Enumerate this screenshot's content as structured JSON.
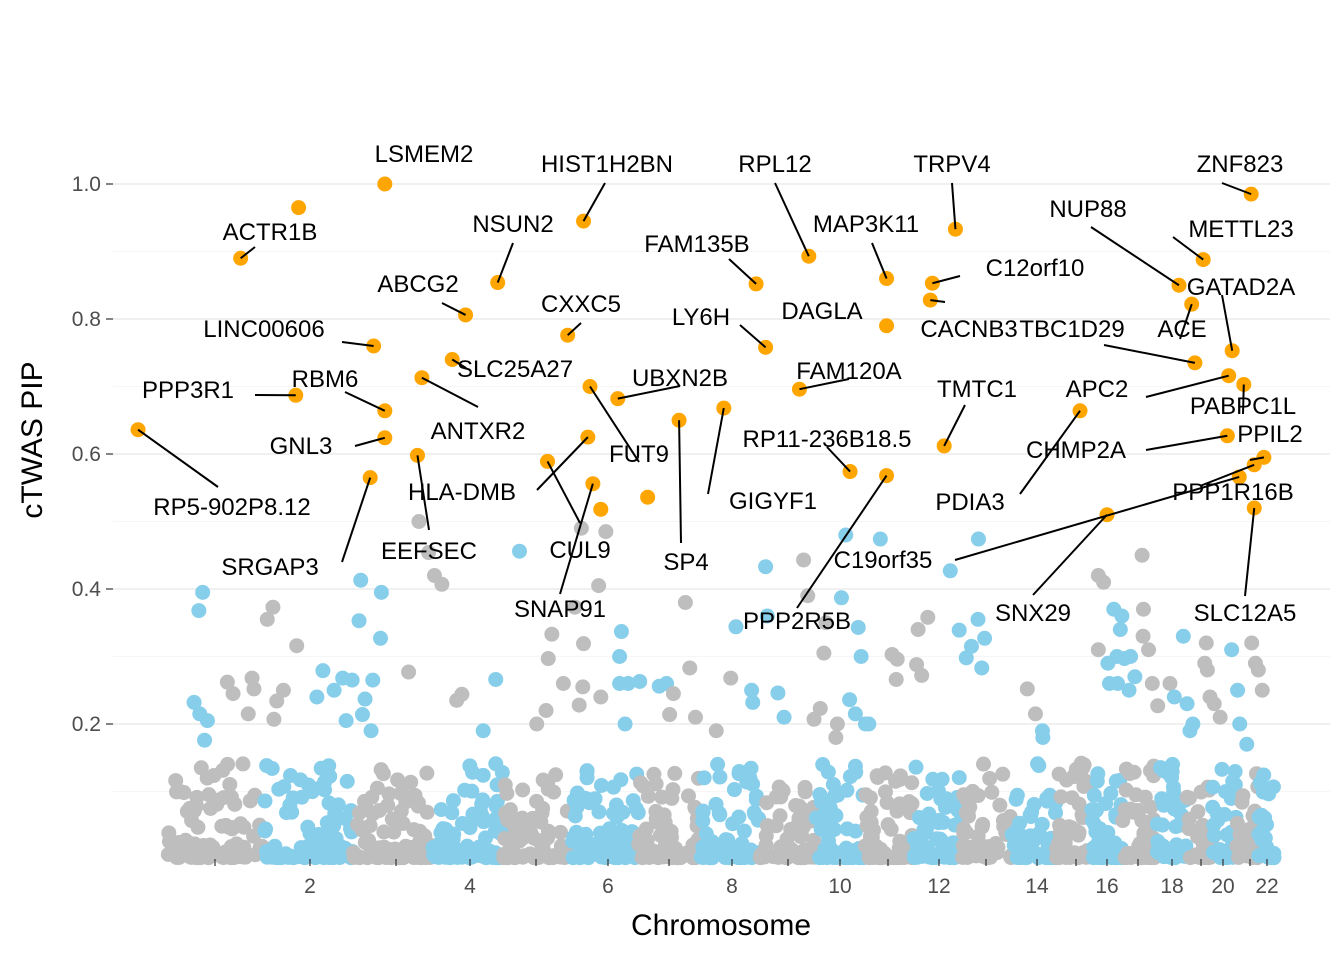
{
  "chart_data": {
    "type": "scatter",
    "title": "",
    "xlabel": "Chromosome",
    "ylabel": "cTWAS PIP",
    "xlim": [
      0.15,
      22.45
    ],
    "ylim": [
      0,
      1.08
    ],
    "x_ticks": [
      1,
      2,
      3,
      4,
      5,
      6,
      7,
      8,
      9,
      10,
      11,
      12,
      13,
      14,
      15,
      16,
      17,
      18,
      19,
      20,
      21,
      22
    ],
    "x_tick_labels": [
      "",
      "2",
      "",
      "4",
      "",
      "6",
      "",
      "8",
      "",
      "10",
      "",
      "12",
      "",
      "14",
      "",
      "16",
      "",
      "18",
      "",
      "20",
      "",
      "22"
    ],
    "y_ticks": [
      0.2,
      0.4,
      0.6,
      0.8,
      1.0
    ],
    "y_tick_labels": [
      "0.2",
      "0.4",
      "0.6",
      "0.8",
      "1.0"
    ],
    "colors": {
      "odd_chromosome": "#bebebe",
      "even_chromosome": "#87ceeb",
      "highlighted": "#ffa500",
      "grid": "#ebebeb",
      "axis_text": "#4d4d4d"
    },
    "series": [
      {
        "name": "background",
        "values": [
          {
            "x": 0.87,
            "y": 0.395
          },
          {
            "x": 0.83,
            "y": 0.368
          },
          {
            "x": 1.55,
            "y": 0.355
          },
          {
            "x": 1.61,
            "y": 0.373
          },
          {
            "x": 0.78,
            "y": 0.232
          },
          {
            "x": 0.84,
            "y": 0.215
          },
          {
            "x": 0.92,
            "y": 0.205
          },
          {
            "x": 0.89,
            "y": 0.176
          },
          {
            "x": 1.13,
            "y": 0.262
          },
          {
            "x": 1.19,
            "y": 0.245
          },
          {
            "x": 1.39,
            "y": 0.268
          },
          {
            "x": 1.41,
            "y": 0.252
          },
          {
            "x": 1.72,
            "y": 0.25
          },
          {
            "x": 1.65,
            "y": 0.234
          },
          {
            "x": 1.62,
            "y": 0.207
          },
          {
            "x": 1.35,
            "y": 0.215
          },
          {
            "x": 1.86,
            "y": 0.316
          },
          {
            "x": 2.15,
            "y": 0.279
          },
          {
            "x": 2.38,
            "y": 0.268
          },
          {
            "x": 2.49,
            "y": 0.265
          },
          {
            "x": 2.08,
            "y": 0.24
          },
          {
            "x": 2.28,
            "y": 0.25
          },
          {
            "x": 2.42,
            "y": 0.205
          },
          {
            "x": 2.61,
            "y": 0.214
          },
          {
            "x": 2.59,
            "y": 0.413
          },
          {
            "x": 2.57,
            "y": 0.353
          },
          {
            "x": 2.64,
            "y": 0.237
          },
          {
            "x": 2.71,
            "y": 0.19
          },
          {
            "x": 2.83,
            "y": 0.395
          },
          {
            "x": 2.82,
            "y": 0.327
          },
          {
            "x": 3.17,
            "y": 0.277
          },
          {
            "x": 2.73,
            "y": 0.265
          },
          {
            "x": 3.31,
            "y": 0.5
          },
          {
            "x": 3.44,
            "y": 0.454
          },
          {
            "x": 3.52,
            "y": 0.42
          },
          {
            "x": 3.62,
            "y": 0.407
          },
          {
            "x": 3.89,
            "y": 0.244
          },
          {
            "x": 3.82,
            "y": 0.235
          },
          {
            "x": 4.39,
            "y": 0.266
          },
          {
            "x": 4.2,
            "y": 0.19
          },
          {
            "x": 4.75,
            "y": 0.456
          },
          {
            "x": 5.54,
            "y": 0.373
          },
          {
            "x": 5.22,
            "y": 0.333
          },
          {
            "x": 5.17,
            "y": 0.297
          },
          {
            "x": 5.01,
            "y": 0.2
          },
          {
            "x": 5.14,
            "y": 0.22
          },
          {
            "x": 5.38,
            "y": 0.26
          },
          {
            "x": 5.6,
            "y": 0.228
          },
          {
            "x": 5.63,
            "y": 0.49
          },
          {
            "x": 5.97,
            "y": 0.485
          },
          {
            "x": 5.87,
            "y": 0.405
          },
          {
            "x": 6.22,
            "y": 0.337
          },
          {
            "x": 5.66,
            "y": 0.319
          },
          {
            "x": 6.19,
            "y": 0.3
          },
          {
            "x": 6.19,
            "y": 0.26
          },
          {
            "x": 5.65,
            "y": 0.255
          },
          {
            "x": 6.33,
            "y": 0.26
          },
          {
            "x": 5.9,
            "y": 0.24
          },
          {
            "x": 6.28,
            "y": 0.2
          },
          {
            "x": 6.52,
            "y": 0.263
          },
          {
            "x": 6.84,
            "y": 0.256
          },
          {
            "x": 6.96,
            "y": 0.26
          },
          {
            "x": 7.07,
            "y": 0.245
          },
          {
            "x": 7.01,
            "y": 0.214
          },
          {
            "x": 7.26,
            "y": 0.38
          },
          {
            "x": 7.33,
            "y": 0.283
          },
          {
            "x": 7.42,
            "y": 0.21
          },
          {
            "x": 7.75,
            "y": 0.19
          },
          {
            "x": 8.07,
            "y": 0.344
          },
          {
            "x": 7.98,
            "y": 0.268
          },
          {
            "x": 8.35,
            "y": 0.25
          },
          {
            "x": 8.37,
            "y": 0.232
          },
          {
            "x": 8.6,
            "y": 0.433
          },
          {
            "x": 8.63,
            "y": 0.36
          },
          {
            "x": 8.82,
            "y": 0.246
          },
          {
            "x": 8.93,
            "y": 0.21
          },
          {
            "x": 9.3,
            "y": 0.443
          },
          {
            "x": 9.38,
            "y": 0.39
          },
          {
            "x": 9.73,
            "y": 0.35
          },
          {
            "x": 9.69,
            "y": 0.305
          },
          {
            "x": 9.5,
            "y": 0.207
          },
          {
            "x": 9.62,
            "y": 0.223
          },
          {
            "x": 9.95,
            "y": 0.2
          },
          {
            "x": 9.92,
            "y": 0.18
          },
          {
            "x": 10.12,
            "y": 0.48
          },
          {
            "x": 10.03,
            "y": 0.387
          },
          {
            "x": 10.38,
            "y": 0.343
          },
          {
            "x": 10.44,
            "y": 0.3
          },
          {
            "x": 10.2,
            "y": 0.236
          },
          {
            "x": 10.32,
            "y": 0.215
          },
          {
            "x": 10.53,
            "y": 0.2
          },
          {
            "x": 10.6,
            "y": 0.2
          },
          {
            "x": 10.84,
            "y": 0.474
          },
          {
            "x": 11.08,
            "y": 0.303
          },
          {
            "x": 11.16,
            "y": 0.266
          },
          {
            "x": 11.18,
            "y": 0.296
          },
          {
            "x": 11.59,
            "y": 0.34
          },
          {
            "x": 11.56,
            "y": 0.288
          },
          {
            "x": 11.78,
            "y": 0.358
          },
          {
            "x": 11.66,
            "y": 0.272
          },
          {
            "x": 12.24,
            "y": 0.427
          },
          {
            "x": 12.43,
            "y": 0.339
          },
          {
            "x": 12.69,
            "y": 0.315
          },
          {
            "x": 12.58,
            "y": 0.298
          },
          {
            "x": 12.84,
            "y": 0.474
          },
          {
            "x": 12.83,
            "y": 0.355
          },
          {
            "x": 12.97,
            "y": 0.327
          },
          {
            "x": 12.91,
            "y": 0.283
          },
          {
            "x": 13.81,
            "y": 0.252
          },
          {
            "x": 13.97,
            "y": 0.215
          },
          {
            "x": 14.14,
            "y": 0.19
          },
          {
            "x": 14.15,
            "y": 0.18
          },
          {
            "x": 15.72,
            "y": 0.42
          },
          {
            "x": 15.72,
            "y": 0.31
          },
          {
            "x": 15.89,
            "y": 0.41
          },
          {
            "x": 16.22,
            "y": 0.37
          },
          {
            "x": 16.08,
            "y": 0.26
          },
          {
            "x": 16.03,
            "y": 0.29
          },
          {
            "x": 16.32,
            "y": 0.3
          },
          {
            "x": 16.34,
            "y": 0.26
          },
          {
            "x": 16.48,
            "y": 0.36
          },
          {
            "x": 16.43,
            "y": 0.34
          },
          {
            "x": 16.56,
            "y": 0.297
          },
          {
            "x": 16.71,
            "y": 0.25
          },
          {
            "x": 16.76,
            "y": 0.3
          },
          {
            "x": 16.9,
            "y": 0.27
          },
          {
            "x": 17.12,
            "y": 0.45
          },
          {
            "x": 17.16,
            "y": 0.37
          },
          {
            "x": 17.15,
            "y": 0.33
          },
          {
            "x": 17.31,
            "y": 0.31
          },
          {
            "x": 17.42,
            "y": 0.26
          },
          {
            "x": 17.58,
            "y": 0.227
          },
          {
            "x": 17.94,
            "y": 0.26
          },
          {
            "x": 18.08,
            "y": 0.24
          },
          {
            "x": 18.39,
            "y": 0.33
          },
          {
            "x": 18.52,
            "y": 0.23
          },
          {
            "x": 18.62,
            "y": 0.19
          },
          {
            "x": 18.72,
            "y": 0.2
          },
          {
            "x": 19.17,
            "y": 0.29
          },
          {
            "x": 19.24,
            "y": 0.32
          },
          {
            "x": 19.29,
            "y": 0.28
          },
          {
            "x": 19.41,
            "y": 0.24
          },
          {
            "x": 19.6,
            "y": 0.23
          },
          {
            "x": 19.87,
            "y": 0.21
          },
          {
            "x": 20.32,
            "y": 0.31
          },
          {
            "x": 20.54,
            "y": 0.25
          },
          {
            "x": 20.62,
            "y": 0.2
          },
          {
            "x": 20.88,
            "y": 0.17
          },
          {
            "x": 21.1,
            "y": 0.32
          },
          {
            "x": 21.32,
            "y": 0.29
          },
          {
            "x": 21.49,
            "y": 0.28
          },
          {
            "x": 21.72,
            "y": 0.25
          }
        ]
      },
      {
        "name": "highlighted",
        "values": [
          {
            "x": 2.87,
            "y": 1.0,
            "gene": "LSMEM2"
          },
          {
            "x": 5.66,
            "y": 0.945,
            "gene": "HIST1H2BN"
          },
          {
            "x": 9.4,
            "y": 0.893,
            "gene": "RPL12"
          },
          {
            "x": 12.35,
            "y": 0.933,
            "gene": "TRPV4"
          },
          {
            "x": 21.07,
            "y": 0.985,
            "gene": "ZNF823"
          },
          {
            "x": 1.88,
            "y": 0.965,
            "gene": ""
          },
          {
            "x": 1.27,
            "y": 0.89,
            "gene": "ACTR1B"
          },
          {
            "x": 0.19,
            "y": 0.636,
            "gene": "RP5-902P8.12"
          },
          {
            "x": 4.42,
            "y": 0.854,
            "gene": "NSUN2"
          },
          {
            "x": 8.43,
            "y": 0.852,
            "gene": "FAM135B"
          },
          {
            "x": 10.97,
            "y": 0.86,
            "gene": "MAP3K11"
          },
          {
            "x": 11.87,
            "y": 0.853,
            "gene": "C12orf10"
          },
          {
            "x": 18.24,
            "y": 0.85,
            "gene": "NUP88"
          },
          {
            "x": 19.1,
            "y": 0.888,
            "gene": "METTL23"
          },
          {
            "x": 3.94,
            "y": 0.806,
            "gene": "ABCG2"
          },
          {
            "x": 5.44,
            "y": 0.776,
            "gene": "CXXC5"
          },
          {
            "x": 11.83,
            "y": 0.828,
            "gene": "CACNB3"
          },
          {
            "x": 10.97,
            "y": 0.79,
            "gene": "DAGLA"
          },
          {
            "x": 18.68,
            "y": 0.822,
            "gene": "ACE"
          },
          {
            "x": 2.74,
            "y": 0.76,
            "gene": "LINC00606"
          },
          {
            "x": 8.6,
            "y": 0.758,
            "gene": "LY6H"
          },
          {
            "x": 18.79,
            "y": 0.735,
            "gene": "TBC1D29"
          },
          {
            "x": 20.34,
            "y": 0.753,
            "gene": "GATAD2A"
          },
          {
            "x": 3.76,
            "y": 0.74,
            "gene": "SLC25A27"
          },
          {
            "x": 3.35,
            "y": 0.713,
            "gene": "ANTXR2"
          },
          {
            "x": 9.22,
            "y": 0.696,
            "gene": "FAM120A"
          },
          {
            "x": 20.21,
            "y": 0.716,
            "gene": "APC2"
          },
          {
            "x": 20.77,
            "y": 0.703,
            "gene": "PABPC1L"
          },
          {
            "x": 1.85,
            "y": 0.687,
            "gene": "PPP3R1"
          },
          {
            "x": 5.75,
            "y": 0.7,
            "gene": "FUT9"
          },
          {
            "x": 6.16,
            "y": 0.682,
            "gene": "UBXN2B"
          },
          {
            "x": 2.87,
            "y": 0.664,
            "gene": "RBM6"
          },
          {
            "x": 7.87,
            "y": 0.668,
            "gene": "GIGYF1"
          },
          {
            "x": 7.16,
            "y": 0.65,
            "gene": "SP4"
          },
          {
            "x": 15.13,
            "y": 0.664,
            "gene": "PDIA3"
          },
          {
            "x": 2.87,
            "y": 0.624,
            "gene": "GNL3"
          },
          {
            "x": 5.72,
            "y": 0.625,
            "gene": "HLA-DMB"
          },
          {
            "x": 12.11,
            "y": 0.612,
            "gene": "TMTC1"
          },
          {
            "x": 20.16,
            "y": 0.627,
            "gene": "CHMP2A"
          },
          {
            "x": 3.29,
            "y": 0.598,
            "gene": "EEFSEC"
          },
          {
            "x": 5.16,
            "y": 0.589,
            "gene": "CUL9"
          },
          {
            "x": 10.21,
            "y": 0.574,
            "gene": "RP11-236B18.5"
          },
          {
            "x": 21.25,
            "y": 0.584,
            "gene": "PPP1R16B"
          },
          {
            "x": 21.82,
            "y": 0.595,
            "gene": "PPIL2"
          },
          {
            "x": 2.7,
            "y": 0.565,
            "gene": "SRGAP3"
          },
          {
            "x": 10.97,
            "y": 0.568,
            "gene": "PPP2R5B"
          },
          {
            "x": 20.6,
            "y": 0.566,
            "gene": "C19orf35"
          },
          {
            "x": 5.79,
            "y": 0.556,
            "gene": "SNAP91"
          },
          {
            "x": 5.9,
            "y": 0.518,
            "gene": ""
          },
          {
            "x": 6.65,
            "y": 0.536,
            "gene": ""
          },
          {
            "x": 16.0,
            "y": 0.51,
            "gene": "SNX29"
          },
          {
            "x": 21.25,
            "y": 0.52,
            "gene": "SLC12A5"
          }
        ]
      }
    ]
  }
}
